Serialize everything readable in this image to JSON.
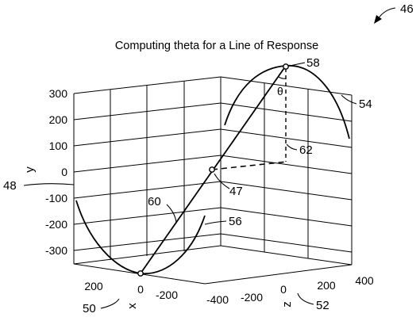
{
  "figure_number": "46",
  "title": "Computing theta for a Line of Response",
  "axes": {
    "y_label": "y",
    "x_label": "x",
    "z_label": "z",
    "y_ticks": [
      "300",
      "200",
      "100",
      "0",
      "-100",
      "-200",
      "-300"
    ],
    "x_ticks": [
      "200",
      "0",
      "-200",
      "-400"
    ],
    "z_ticks": [
      "-200",
      "0",
      "200",
      "400"
    ]
  },
  "angle_symbol": "θ",
  "reference_numerals": {
    "r46": "46",
    "r58": "58",
    "r54": "54",
    "r62": "62",
    "r48": "48",
    "r47": "47",
    "r60": "60",
    "r56": "56",
    "r50": "50",
    "r52": "52"
  }
}
